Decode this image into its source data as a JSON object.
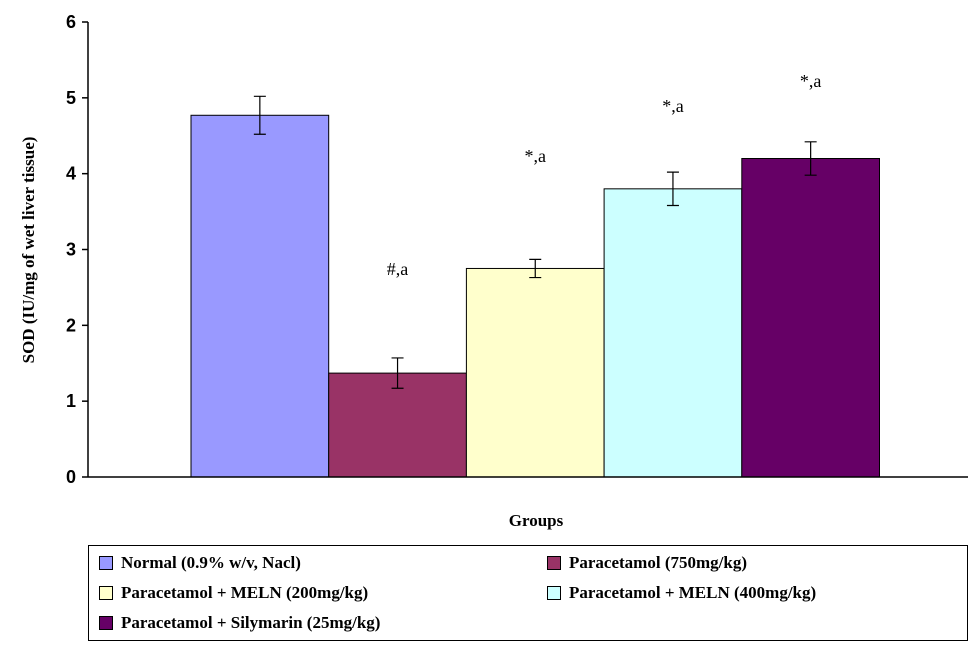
{
  "chart_data": {
    "type": "bar",
    "xlabel": "Groups",
    "ylabel": "SOD (IU/mg of wet liver tissue)",
    "ylim": [
      0,
      6
    ],
    "yticks": [
      0,
      1,
      2,
      3,
      4,
      5,
      6
    ],
    "grid": false,
    "legend_position": "bottom",
    "series": [
      {
        "name": "Normal (0.9% w/v, Nacl)",
        "value": 4.77,
        "error": 0.25,
        "annotation": "",
        "color": "#9999ff"
      },
      {
        "name": "Paracetamol (750mg/kg)",
        "value": 1.37,
        "error": 0.2,
        "annotation": "#,a",
        "color": "#993366"
      },
      {
        "name": "Paracetamol + MELN (200mg/kg)",
        "value": 2.75,
        "error": 0.12,
        "annotation": "*,a",
        "color": "#ffffcc"
      },
      {
        "name": "Paracetamol + MELN (400mg/kg)",
        "value": 3.8,
        "error": 0.22,
        "annotation": "*,a",
        "color": "#ccffff"
      },
      {
        "name": "Paracetamol + Silymarin (25mg/kg)",
        "value": 4.2,
        "error": 0.22,
        "annotation": "*,a",
        "color": "#660066"
      }
    ]
  }
}
